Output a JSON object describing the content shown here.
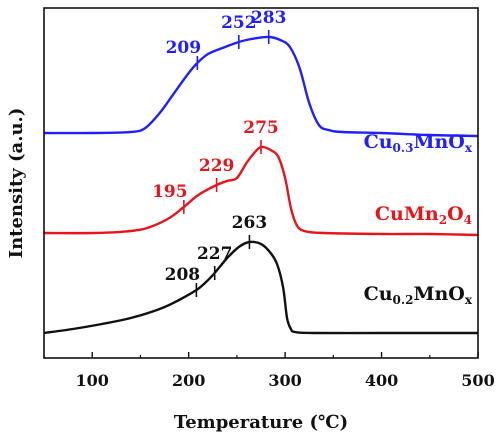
{
  "chart_data": {
    "type": "line",
    "xlabel": "Temperature (℃)",
    "ylabel": "Intensity (a.u.)",
    "xlim": [
      50,
      500
    ],
    "xticks": [
      100,
      200,
      300,
      400,
      500
    ],
    "yticks_shown": false,
    "grid": false,
    "series": [
      {
        "name": "Cu0.3MnOx",
        "label": {
          "base": "Cu",
          "sub1": "0.3",
          "mid": "MnO",
          "sub2": "x"
        },
        "color": "#1f1fff",
        "offset": 2.0,
        "x": [
          50,
          100,
          140,
          155,
          170,
          185,
          200,
          209,
          220,
          235,
          252,
          265,
          283,
          295,
          305,
          315,
          325,
          335,
          345,
          360,
          400,
          450,
          500
        ],
        "y": [
          0.0,
          0.0,
          0.01,
          0.05,
          0.2,
          0.4,
          0.6,
          0.7,
          0.79,
          0.85,
          0.91,
          0.94,
          0.96,
          0.93,
          0.86,
          0.65,
          0.3,
          0.08,
          0.03,
          0.01,
          0.0,
          -0.02,
          -0.03
        ],
        "peaks": [
          {
            "x": 209,
            "label": "209"
          },
          {
            "x": 252,
            "label": "252"
          },
          {
            "x": 283,
            "label": "283"
          }
        ]
      },
      {
        "name": "CuMn2O4",
        "label": {
          "base": "CuMn",
          "sub1": "2",
          "mid": "O",
          "sub2": "4"
        },
        "color": "#e8141a",
        "offset": 1.0,
        "x": [
          50,
          100,
          140,
          160,
          180,
          195,
          210,
          229,
          240,
          250,
          260,
          268,
          275,
          285,
          293,
          300,
          306,
          312,
          320,
          340,
          400,
          450,
          500
        ],
        "y": [
          0.0,
          0.0,
          0.02,
          0.06,
          0.15,
          0.26,
          0.38,
          0.48,
          0.52,
          0.55,
          0.7,
          0.8,
          0.86,
          0.83,
          0.76,
          0.55,
          0.25,
          0.08,
          0.02,
          0.0,
          -0.01,
          -0.01,
          -0.02
        ],
        "peaks": [
          {
            "x": 195,
            "label": "195"
          },
          {
            "x": 229,
            "label": "229"
          },
          {
            "x": 275,
            "label": "275"
          }
        ]
      },
      {
        "name": "Cu0.2MnOx",
        "label": {
          "base": "Cu",
          "sub1": "0.2",
          "mid": "MnO",
          "sub2": "x"
        },
        "color": "#111111",
        "offset": 0.0,
        "x": [
          50,
          80,
          110,
          140,
          170,
          190,
          208,
          218,
          227,
          240,
          252,
          263,
          275,
          285,
          292,
          298,
          302,
          306,
          310,
          330,
          400,
          450,
          500
        ],
        "y": [
          0.0,
          0.04,
          0.09,
          0.15,
          0.24,
          0.33,
          0.43,
          0.51,
          0.6,
          0.75,
          0.86,
          0.91,
          0.89,
          0.8,
          0.68,
          0.45,
          0.15,
          0.04,
          0.01,
          0.0,
          0.0,
          0.0,
          0.0
        ],
        "peaks": [
          {
            "x": 208,
            "label": "208"
          },
          {
            "x": 227,
            "label": "227"
          },
          {
            "x": 263,
            "label": "263"
          }
        ]
      }
    ]
  }
}
